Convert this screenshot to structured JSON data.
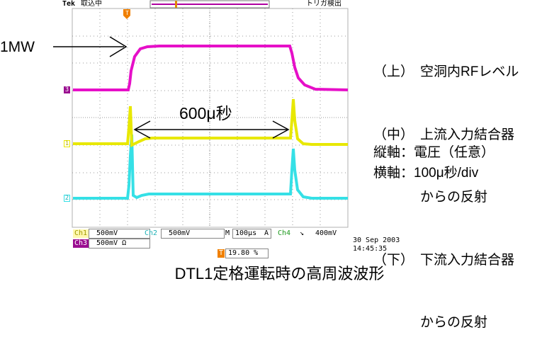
{
  "header": {
    "brand": "Tek",
    "acquire_status": "取込中",
    "trigger_status": "トリガ検出"
  },
  "channels": {
    "ch1": {
      "marker": "1",
      "color": "#e8e800"
    },
    "ch2": {
      "marker": "2",
      "color": "#35e0e6"
    },
    "ch3": {
      "marker": "3",
      "color": "#e60fc8"
    }
  },
  "annotations": {
    "power_label": "1MW",
    "pulse_duration": "600μ秒"
  },
  "legend": {
    "rows": [
      {
        "paren": "（上）",
        "text": "空洞内RFレベル"
      },
      {
        "paren": "（中）",
        "text": "上流入力結合器"
      },
      {
        "paren": "",
        "text": "からの反射"
      },
      {
        "paren": "（下）",
        "text": "下流入力結合器"
      },
      {
        "paren": "",
        "text": "からの反射"
      }
    ],
    "vertical_axis": "縦軸：電圧（任意）",
    "horizontal_axis": "横軸：100μ秒/div"
  },
  "status_bar": {
    "ch1_label": "Ch1",
    "ch1_scale": "500mV",
    "ch2_label": "Ch2",
    "ch2_scale": "500mV",
    "ch3_label": "Ch3",
    "ch3_scale": "500mV Ω",
    "timebase_label": "M",
    "timebase": "100μs",
    "trigger_mode": "A",
    "trigger_source": "Ch4",
    "trigger_level": "400mV",
    "trigger_pos_marker": "T",
    "trigger_position": "19.80 %",
    "date": "30 Sep  2003",
    "time": "14:45:35"
  },
  "caption": "DTL1定格運転時の高周波波形"
}
